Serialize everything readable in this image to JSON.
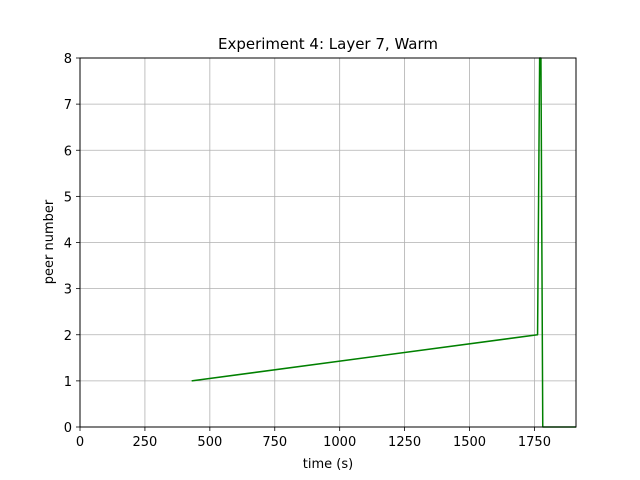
{
  "chart_data": {
    "type": "line",
    "title": "Experiment 4: Layer 7, Warm",
    "xlabel": "time (s)",
    "ylabel": "peer number",
    "xlim": [
      0,
      1910
    ],
    "ylim": [
      0,
      8
    ],
    "xticks": [
      0,
      250,
      500,
      750,
      1000,
      1250,
      1500,
      1750
    ],
    "yticks": [
      0,
      1,
      2,
      3,
      4,
      5,
      6,
      7,
      8
    ],
    "grid": true,
    "series": [
      {
        "color": "#008000",
        "x": [
          430,
          1762,
          1770,
          1775,
          1782,
          1910
        ],
        "y": [
          1,
          2,
          8,
          8,
          0,
          0
        ]
      }
    ]
  }
}
